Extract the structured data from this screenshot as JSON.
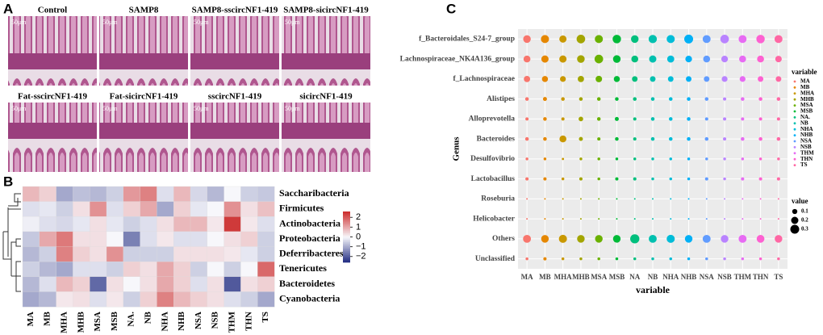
{
  "panel_a": {
    "label": "A",
    "images": [
      {
        "title": "Control",
        "scale": "50μm"
      },
      {
        "title": "SAMP8",
        "scale": "50μm"
      },
      {
        "title": "SAMP8-sscircNF1-419",
        "scale": "50μm"
      },
      {
        "title": "SAMP8-sicircNF1-419",
        "scale": "50μm"
      },
      {
        "title": "Fat-sscircNF1-419",
        "scale": "50μm"
      },
      {
        "title": "Fat-sicircNF1-419",
        "scale": "50μm"
      },
      {
        "title": "sscircNF1-419",
        "scale": "50μm"
      },
      {
        "title": "sicircNF1-419",
        "scale": "50μm"
      }
    ]
  },
  "chart_data": [
    {
      "type": "heatmap",
      "panel_label": "B",
      "columns": [
        "MA",
        "MB",
        "MHA",
        "MHB",
        "MSA",
        "MSB",
        "NA.",
        "NB",
        "NHA",
        "NHB",
        "NSA",
        "NSB",
        "THM",
        "THN",
        "TS"
      ],
      "rows": [
        "Saccharibacteria",
        "Firmicutes",
        "Actinobacteria",
        "Proteobacteria",
        "Deferribacteres",
        "Tenericutes",
        "Bacteroidetes",
        "Cyanobacteria"
      ],
      "values": [
        [
          0.8,
          0.5,
          -1.0,
          -0.7,
          -0.8,
          -0.5,
          1.2,
          1.5,
          -0.3,
          0.8,
          -0.4,
          -0.8,
          0.0,
          -0.5,
          -0.6
        ],
        [
          -0.3,
          -0.2,
          -0.5,
          0.3,
          1.3,
          -0.3,
          0.5,
          1.0,
          -1.0,
          0.5,
          -0.2,
          0.0,
          1.3,
          0.3,
          0.7
        ],
        [
          -0.1,
          -0.3,
          -0.4,
          -0.2,
          0.3,
          -0.2,
          -0.5,
          -0.3,
          0.3,
          0.8,
          0.8,
          0.2,
          2.4,
          0.2,
          -0.3
        ],
        [
          -0.6,
          1.0,
          1.6,
          0.3,
          0.3,
          0.0,
          -1.5,
          -0.3,
          0.2,
          -0.3,
          -0.3,
          0.0,
          0.3,
          0.5,
          -0.5
        ],
        [
          -0.8,
          -0.5,
          1.5,
          0.5,
          0.3,
          1.3,
          -0.5,
          -0.5,
          -0.5,
          0.3,
          0.3,
          0.3,
          0.2,
          -0.2,
          -0.5
        ],
        [
          -0.5,
          -0.8,
          -1.0,
          -0.3,
          -0.3,
          -0.5,
          0.5,
          0.3,
          1.0,
          0.5,
          -0.5,
          0.0,
          -0.5,
          0.0,
          1.8
        ],
        [
          -0.8,
          -0.3,
          0.8,
          0.5,
          -1.8,
          0.3,
          0.0,
          0.3,
          1.0,
          0.5,
          -0.3,
          0.3,
          -2.0,
          0.3,
          0.5
        ],
        [
          -1.0,
          -0.8,
          0.2,
          0.3,
          -0.3,
          0.2,
          -0.5,
          0.5,
          1.5,
          0.8,
          0.5,
          0.3,
          -0.3,
          -0.5,
          -1.0
        ]
      ],
      "zlim": [
        -2.6,
        2.6
      ],
      "colors": [
        "#1f2a80",
        "#f7f7fb",
        "#cc2a2a"
      ],
      "zticks": [
        2,
        1,
        0,
        {
          "value": -1,
          "label": "−1"
        },
        {
          "value": -2,
          "label": "−2"
        }
      ]
    },
    {
      "type": "bubble",
      "panel_label": "C",
      "y_label": "Genus",
      "x_label": "variable",
      "legend_title": "variable",
      "size_title": "value",
      "x": [
        "MA",
        "MB",
        "MHA",
        "MHB",
        "MSA",
        "MSB",
        "NA",
        "NB",
        "NHA",
        "NHB",
        "NSA",
        "NSB",
        "THM",
        "THN",
        "TS"
      ],
      "categories": [
        "f_Bacteroidales_S24-7_group",
        "Lachnospiraceae_NK4A136_group",
        "f_Lachnospiraceae",
        "Alistipes",
        "Alloprevotella",
        "Bacteroides",
        "Desulfovibrio",
        "Lactobacillus",
        "Roseburia",
        "Helicobacter",
        "Others",
        "Unclassified"
      ],
      "series": [
        {
          "name": "MA",
          "color": "#F8766D",
          "values": [
            0.22,
            0.18,
            0.15,
            0.05,
            0.04,
            0.05,
            0.03,
            0.04,
            0.01,
            0.01,
            0.24,
            0.03
          ]
        },
        {
          "name": "MB",
          "color": "#E58700",
          "values": [
            0.25,
            0.2,
            0.14,
            0.06,
            0.05,
            0.05,
            0.03,
            0.04,
            0.01,
            0.01,
            0.22,
            0.04
          ]
        },
        {
          "name": "MHA",
          "color": "#C99800",
          "values": [
            0.2,
            0.2,
            0.13,
            0.05,
            0.04,
            0.18,
            0.02,
            0.03,
            0.01,
            0.01,
            0.25,
            0.03
          ]
        },
        {
          "name": "MHB",
          "color": "#A3A500",
          "values": [
            0.28,
            0.22,
            0.15,
            0.05,
            0.08,
            0.06,
            0.03,
            0.04,
            0.01,
            0.01,
            0.22,
            0.03
          ]
        },
        {
          "name": "MSA",
          "color": "#6BB100",
          "values": [
            0.25,
            0.28,
            0.16,
            0.05,
            0.05,
            0.04,
            0.03,
            0.03,
            0.01,
            0.01,
            0.22,
            0.03
          ]
        },
        {
          "name": "MSB",
          "color": "#00BA38",
          "values": [
            0.27,
            0.22,
            0.14,
            0.05,
            0.06,
            0.05,
            0.03,
            0.04,
            0.01,
            0.01,
            0.22,
            0.03
          ]
        },
        {
          "name": "NA.",
          "color": "#00BF7D",
          "values": [
            0.22,
            0.18,
            0.12,
            0.05,
            0.04,
            0.04,
            0.03,
            0.04,
            0.01,
            0.01,
            0.32,
            0.03
          ]
        },
        {
          "name": "NB",
          "color": "#00C0AF",
          "values": [
            0.26,
            0.2,
            0.12,
            0.05,
            0.05,
            0.05,
            0.03,
            0.03,
            0.01,
            0.01,
            0.24,
            0.03
          ]
        },
        {
          "name": "NHA",
          "color": "#00BCD8",
          "values": [
            0.25,
            0.19,
            0.12,
            0.05,
            0.05,
            0.05,
            0.03,
            0.03,
            0.01,
            0.01,
            0.25,
            0.03
          ]
        },
        {
          "name": "NHB",
          "color": "#00B0F6",
          "values": [
            0.3,
            0.17,
            0.12,
            0.05,
            0.05,
            0.05,
            0.03,
            0.03,
            0.01,
            0.01,
            0.22,
            0.03
          ]
        },
        {
          "name": "NSA",
          "color": "#619CFF",
          "values": [
            0.24,
            0.18,
            0.12,
            0.05,
            0.04,
            0.05,
            0.03,
            0.04,
            0.01,
            0.01,
            0.24,
            0.03
          ]
        },
        {
          "name": "NSB",
          "color": "#B983FF",
          "values": [
            0.28,
            0.17,
            0.13,
            0.04,
            0.04,
            0.04,
            0.03,
            0.03,
            0.01,
            0.01,
            0.22,
            0.03
          ]
        },
        {
          "name": "THM",
          "color": "#E76BF3",
          "values": [
            0.24,
            0.18,
            0.13,
            0.05,
            0.04,
            0.05,
            0.03,
            0.04,
            0.01,
            0.01,
            0.24,
            0.03
          ]
        },
        {
          "name": "THN",
          "color": "#FD61D1",
          "values": [
            0.27,
            0.18,
            0.12,
            0.05,
            0.04,
            0.05,
            0.03,
            0.04,
            0.01,
            0.01,
            0.23,
            0.03
          ]
        },
        {
          "name": "TS",
          "color": "#FF67A4",
          "values": [
            0.24,
            0.16,
            0.12,
            0.05,
            0.04,
            0.05,
            0.03,
            0.04,
            0.01,
            0.01,
            0.22,
            0.03
          ]
        }
      ],
      "size_legend": [
        0.1,
        0.2,
        0.3
      ]
    }
  ]
}
